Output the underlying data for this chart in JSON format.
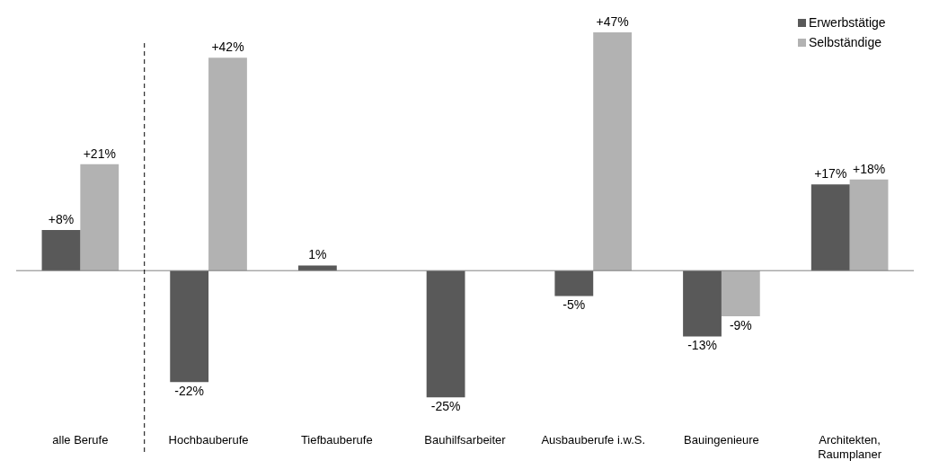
{
  "chart_data": {
    "type": "bar",
    "categories": [
      "alle Berufe",
      "Hochbauberufe",
      "Tiefbauberufe",
      "Bauhilfsarbeiter",
      "Ausbauberufe i.w.S.",
      "Bauingenieure",
      "Architekten, Raumplaner"
    ],
    "series": [
      {
        "name": "Erwerbstätige",
        "color": "#595959",
        "values": [
          8,
          -22,
          1,
          -25,
          -5,
          -13,
          17
        ],
        "value_labels": [
          "+8%",
          "-22%",
          "1%",
          "-25%",
          "-5%",
          "-13%",
          "+17%"
        ]
      },
      {
        "name": "Selbständige",
        "color": "#b2b2b2",
        "values": [
          21,
          42,
          null,
          null,
          47,
          -9,
          18
        ],
        "value_labels": [
          "+21%",
          "+42%",
          null,
          null,
          "+47%",
          "-9%",
          "+18%"
        ]
      }
    ],
    "legend": "top right",
    "grid": false
  }
}
